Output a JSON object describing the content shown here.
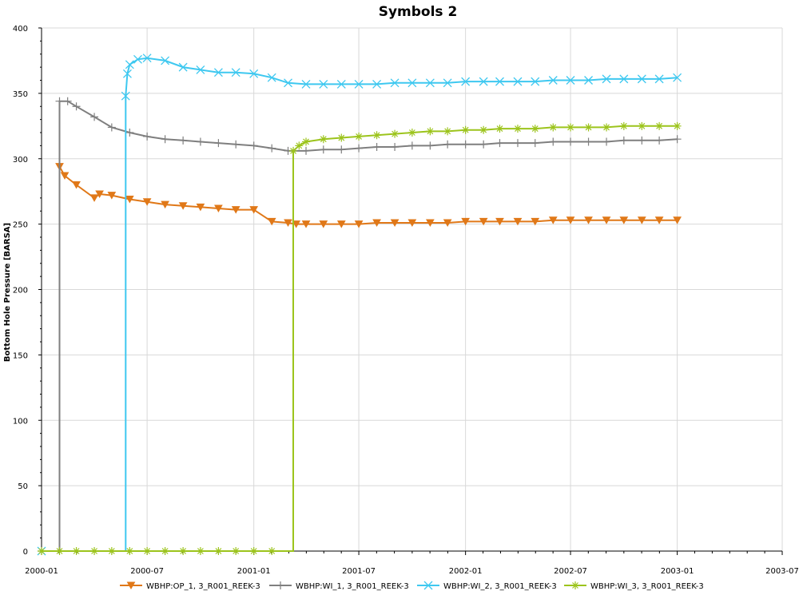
{
  "chart_data": {
    "type": "line",
    "title": "Symbols 2",
    "xlabel": "",
    "ylabel": "Bottom Hole Pressure [BARSA]",
    "x_ticks": [
      "2000-01",
      "2000-07",
      "2001-01",
      "2001-07",
      "2002-01",
      "2002-07",
      "2003-01",
      "2003-07"
    ],
    "x_range": [
      "2000-01",
      "2003-07"
    ],
    "y_ticks": [
      0,
      50,
      100,
      150,
      200,
      250,
      300,
      350,
      400
    ],
    "ylim": [
      0,
      400
    ],
    "grid": true,
    "legend_position": "bottom",
    "series": [
      {
        "name": "WBHP:OP_1, 3_R001_REEK-3",
        "color": "#e07818",
        "marker": "triangle-down",
        "points": [
          [
            "2000-02-01",
            294
          ],
          [
            "2000-02-10",
            287
          ],
          [
            "2000-03-01",
            280
          ],
          [
            "2000-04-01",
            270
          ],
          [
            "2000-04-10",
            273
          ],
          [
            "2000-05-01",
            272
          ],
          [
            "2000-06-01",
            269
          ],
          [
            "2000-07-01",
            267
          ],
          [
            "2000-08-01",
            265
          ],
          [
            "2000-09-01",
            264
          ],
          [
            "2000-10-01",
            263
          ],
          [
            "2000-11-01",
            262
          ],
          [
            "2000-12-01",
            261
          ],
          [
            "2001-01-01",
            261
          ],
          [
            "2001-02-01",
            252
          ],
          [
            "2001-03-01",
            251
          ],
          [
            "2001-03-15",
            250
          ],
          [
            "2001-04-01",
            250
          ],
          [
            "2001-05-01",
            250
          ],
          [
            "2001-06-01",
            250
          ],
          [
            "2001-07-01",
            250
          ],
          [
            "2001-08-01",
            251
          ],
          [
            "2001-09-01",
            251
          ],
          [
            "2001-10-01",
            251
          ],
          [
            "2001-11-01",
            251
          ],
          [
            "2001-12-01",
            251
          ],
          [
            "2002-01-01",
            252
          ],
          [
            "2002-02-01",
            252
          ],
          [
            "2002-03-01",
            252
          ],
          [
            "2002-04-01",
            252
          ],
          [
            "2002-05-01",
            252
          ],
          [
            "2002-06-01",
            253
          ],
          [
            "2002-07-01",
            253
          ],
          [
            "2002-08-01",
            253
          ],
          [
            "2002-09-01",
            253
          ],
          [
            "2002-10-01",
            253
          ],
          [
            "2002-11-01",
            253
          ],
          [
            "2002-12-01",
            253
          ],
          [
            "2003-01-01",
            253
          ]
        ]
      },
      {
        "name": "WBHP:WI_1, 3_R001_REEK-3",
        "color": "#7f7f7f",
        "marker": "plus",
        "points": [
          [
            "2000-01-01",
            0
          ],
          [
            "2000-02-01",
            0
          ],
          [
            "2000-02-01",
            344
          ],
          [
            "2000-02-15",
            344
          ],
          [
            "2000-03-01",
            340
          ],
          [
            "2000-04-01",
            332
          ],
          [
            "2000-05-01",
            324
          ],
          [
            "2000-06-01",
            320
          ],
          [
            "2000-07-01",
            317
          ],
          [
            "2000-08-01",
            315
          ],
          [
            "2000-09-01",
            314
          ],
          [
            "2000-10-01",
            313
          ],
          [
            "2000-11-01",
            312
          ],
          [
            "2000-12-01",
            311
          ],
          [
            "2001-01-01",
            310
          ],
          [
            "2001-02-01",
            308
          ],
          [
            "2001-03-01",
            306
          ],
          [
            "2001-04-01",
            306
          ],
          [
            "2001-05-01",
            307
          ],
          [
            "2001-06-01",
            307
          ],
          [
            "2001-07-01",
            308
          ],
          [
            "2001-08-01",
            309
          ],
          [
            "2001-09-01",
            309
          ],
          [
            "2001-10-01",
            310
          ],
          [
            "2001-11-01",
            310
          ],
          [
            "2001-12-01",
            311
          ],
          [
            "2002-01-01",
            311
          ],
          [
            "2002-02-01",
            311
          ],
          [
            "2002-03-01",
            312
          ],
          [
            "2002-04-01",
            312
          ],
          [
            "2002-05-01",
            312
          ],
          [
            "2002-06-01",
            313
          ],
          [
            "2002-07-01",
            313
          ],
          [
            "2002-08-01",
            313
          ],
          [
            "2002-09-01",
            313
          ],
          [
            "2002-10-01",
            314
          ],
          [
            "2002-11-01",
            314
          ],
          [
            "2002-12-01",
            314
          ],
          [
            "2003-01-01",
            315
          ]
        ]
      },
      {
        "name": "WBHP:WI_2, 3_R001_REEK-3",
        "color": "#3ec8f0",
        "marker": "x",
        "points": [
          [
            "2000-01-01",
            0
          ],
          [
            "2000-05-25",
            0
          ],
          [
            "2000-05-25",
            348
          ],
          [
            "2000-05-28",
            365
          ],
          [
            "2000-06-01",
            372
          ],
          [
            "2000-06-15",
            376
          ],
          [
            "2000-07-01",
            377
          ],
          [
            "2000-08-01",
            375
          ],
          [
            "2000-09-01",
            370
          ],
          [
            "2000-10-01",
            368
          ],
          [
            "2000-11-01",
            366
          ],
          [
            "2000-12-01",
            366
          ],
          [
            "2001-01-01",
            365
          ],
          [
            "2001-02-01",
            362
          ],
          [
            "2001-03-01",
            358
          ],
          [
            "2001-04-01",
            357
          ],
          [
            "2001-05-01",
            357
          ],
          [
            "2001-06-01",
            357
          ],
          [
            "2001-07-01",
            357
          ],
          [
            "2001-08-01",
            357
          ],
          [
            "2001-09-01",
            358
          ],
          [
            "2001-10-01",
            358
          ],
          [
            "2001-11-01",
            358
          ],
          [
            "2001-12-01",
            358
          ],
          [
            "2002-01-01",
            359
          ],
          [
            "2002-02-01",
            359
          ],
          [
            "2002-03-01",
            359
          ],
          [
            "2002-04-01",
            359
          ],
          [
            "2002-05-01",
            359
          ],
          [
            "2002-06-01",
            360
          ],
          [
            "2002-07-01",
            360
          ],
          [
            "2002-08-01",
            360
          ],
          [
            "2002-09-01",
            361
          ],
          [
            "2002-10-01",
            361
          ],
          [
            "2002-11-01",
            361
          ],
          [
            "2002-12-01",
            361
          ],
          [
            "2003-01-01",
            362
          ]
        ]
      },
      {
        "name": "WBHP:WI_3, 3_R001_REEK-3",
        "color": "#9cc41c",
        "marker": "asterisk",
        "points": [
          [
            "2000-01-01",
            0
          ],
          [
            "2000-02-01",
            0
          ],
          [
            "2000-03-01",
            0
          ],
          [
            "2000-04-01",
            0
          ],
          [
            "2000-05-01",
            0
          ],
          [
            "2000-06-01",
            0
          ],
          [
            "2000-07-01",
            0
          ],
          [
            "2000-08-01",
            0
          ],
          [
            "2000-09-01",
            0
          ],
          [
            "2000-10-01",
            0
          ],
          [
            "2000-11-01",
            0
          ],
          [
            "2000-12-01",
            0
          ],
          [
            "2001-01-01",
            0
          ],
          [
            "2001-02-01",
            0
          ],
          [
            "2001-03-10",
            0
          ],
          [
            "2001-03-10",
            306
          ],
          [
            "2001-03-20",
            310
          ],
          [
            "2001-04-01",
            313
          ],
          [
            "2001-05-01",
            315
          ],
          [
            "2001-06-01",
            316
          ],
          [
            "2001-07-01",
            317
          ],
          [
            "2001-08-01",
            318
          ],
          [
            "2001-09-01",
            319
          ],
          [
            "2001-10-01",
            320
          ],
          [
            "2001-11-01",
            321
          ],
          [
            "2001-12-01",
            321
          ],
          [
            "2002-01-01",
            322
          ],
          [
            "2002-02-01",
            322
          ],
          [
            "2002-03-01",
            323
          ],
          [
            "2002-04-01",
            323
          ],
          [
            "2002-05-01",
            323
          ],
          [
            "2002-06-01",
            324
          ],
          [
            "2002-07-01",
            324
          ],
          [
            "2002-08-01",
            324
          ],
          [
            "2002-09-01",
            324
          ],
          [
            "2002-10-01",
            325
          ],
          [
            "2002-11-01",
            325
          ],
          [
            "2002-12-01",
            325
          ],
          [
            "2003-01-01",
            325
          ]
        ]
      }
    ]
  }
}
